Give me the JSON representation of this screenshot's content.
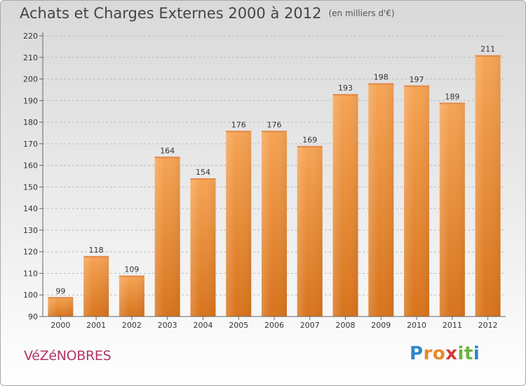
{
  "header": {
    "title": "Achats et Charges Externes 2000 à 2012",
    "subtitle": "(en milliers d'€)"
  },
  "footer": {
    "commune": "VéZéNOBRES",
    "logo_letters": [
      {
        "ch": "P",
        "color": "#2f87c8"
      },
      {
        "ch": "r",
        "color": "#e8892a"
      },
      {
        "ch": "o",
        "color": "#e8892a"
      },
      {
        "ch": "x",
        "color": "#d43a3a"
      },
      {
        "ch": "i",
        "color": "#6db33f"
      },
      {
        "ch": "t",
        "color": "#6db33f"
      },
      {
        "ch": "i",
        "color": "#2f87c8"
      }
    ]
  },
  "colors": {
    "bar_top": "#f6a455",
    "bar_bottom": "#d8741c",
    "axis": "#666666",
    "grid": "#bcbcbc"
  },
  "chart_data": {
    "type": "bar",
    "title": "Achats et Charges Externes 2000 à 2012",
    "subtitle": "(en milliers d'€)",
    "categories": [
      "2000",
      "2001",
      "2002",
      "2003",
      "2004",
      "2005",
      "2006",
      "2007",
      "2008",
      "2009",
      "2010",
      "2011",
      "2012"
    ],
    "values": [
      99,
      118,
      109,
      164,
      154,
      176,
      176,
      169,
      193,
      198,
      197,
      189,
      211
    ],
    "ylim": [
      90,
      220
    ],
    "yticks": [
      90,
      100,
      110,
      120,
      130,
      140,
      150,
      160,
      170,
      180,
      190,
      200,
      210,
      220
    ],
    "grid": true,
    "data_labels": true
  }
}
